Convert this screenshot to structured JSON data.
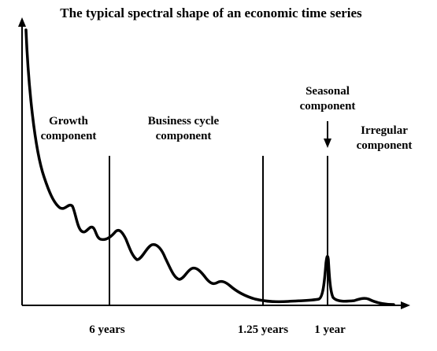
{
  "title": "The typical spectral shape of an economic time series",
  "regions": {
    "growth": [
      "Growth",
      "component"
    ],
    "business_cycle": [
      "Business cycle",
      "component"
    ],
    "seasonal": [
      "Seasonal",
      "component"
    ],
    "irregular": [
      "Irregular",
      "component"
    ]
  },
  "ticks": {
    "six_years": "6 years",
    "one_25_years": "1.25 years",
    "one_year": "1 year"
  },
  "colors": {
    "ink": "#000000",
    "background": "#ffffff"
  }
}
